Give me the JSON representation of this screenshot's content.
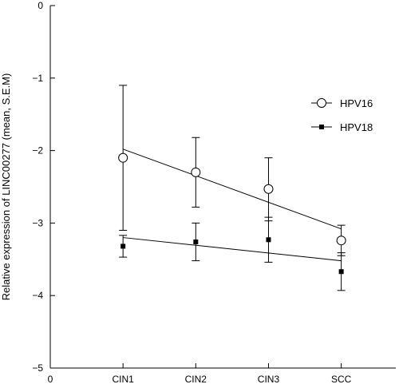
{
  "chart_data": {
    "type": "scatter",
    "title": "",
    "xlabel": "",
    "ylabel": "Relative expression of LINC00277 (mean, S.E.M)",
    "x_ticks": [
      "0",
      "CIN1",
      "CIN2",
      "CIN3",
      "SCC"
    ],
    "categories": [
      "CIN1",
      "CIN2",
      "CIN3",
      "SCC"
    ],
    "xlim": [
      0,
      4.75
    ],
    "ylim": [
      -5,
      0
    ],
    "y_ticks": [
      0,
      -1,
      -2,
      -3,
      -4,
      -5
    ],
    "grid": false,
    "legend_position": "top-right",
    "series": [
      {
        "name": "HPV16",
        "marker": "open-circle",
        "values": [
          -2.1,
          -2.3,
          -2.53,
          -3.24
        ],
        "error_low": [
          -3.1,
          -2.78,
          -2.97,
          -3.45
        ],
        "error_high": [
          -1.1,
          -1.82,
          -2.1,
          -3.03
        ],
        "trend_line": {
          "start": -1.98,
          "end": -3.08
        }
      },
      {
        "name": "HPV18",
        "marker": "filled-square",
        "values": [
          -3.32,
          -3.26,
          -3.23,
          -3.67
        ],
        "error_low": [
          -3.47,
          -3.52,
          -3.54,
          -3.93
        ],
        "error_high": [
          -3.17,
          -3.0,
          -2.92,
          -3.41
        ],
        "trend_line": {
          "start": -3.2,
          "end": -3.52
        }
      }
    ],
    "colors": {
      "line": "#000000",
      "open_marker_fill": "#ffffff",
      "filled_marker": "#000000"
    }
  }
}
